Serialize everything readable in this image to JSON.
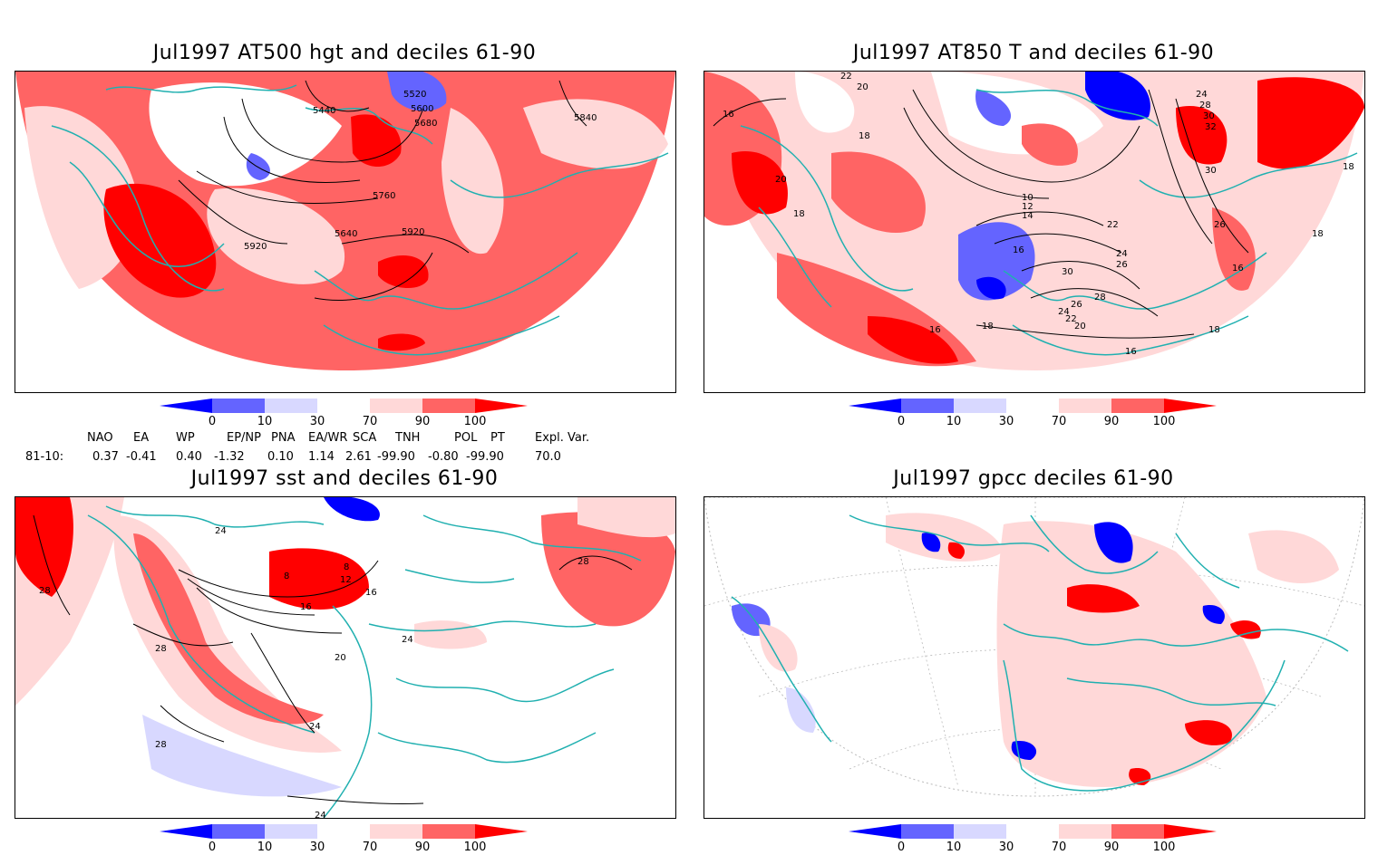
{
  "panels": [
    {
      "id": "p1",
      "title": "Jul1997 AT500 hgt and deciles 61-90",
      "contour_labels": [
        "5520",
        "5440",
        "5600",
        "5680",
        "5840",
        "5760",
        "5920",
        "5640",
        "5920"
      ]
    },
    {
      "id": "p2",
      "title": "Jul1997 AT850 T and deciles 61-90",
      "contour_labels": [
        "22",
        "20",
        "16",
        "18",
        "20",
        "18",
        "10",
        "12",
        "14",
        "16",
        "22",
        "24",
        "26",
        "30",
        "28",
        "26",
        "24",
        "22",
        "20",
        "16",
        "16",
        "18",
        "18",
        "24",
        "28",
        "30",
        "32",
        "30",
        "26",
        "18",
        "16",
        "18"
      ]
    },
    {
      "id": "p3",
      "title": "Jul1997 sst and deciles 61-90",
      "contour_labels": [
        "28",
        "24",
        "28",
        "24",
        "20",
        "16",
        "12",
        "8",
        "8",
        "16",
        "24",
        "28",
        "28",
        "24"
      ]
    },
    {
      "id": "p4",
      "title": "Jul1997 gpcc deciles 61-90",
      "contour_labels": []
    }
  ],
  "colorbar": {
    "colors": [
      "#0000ff",
      "#6464ff",
      "#d8d8ff",
      "#ffffff",
      "#ffd8d8",
      "#ff6464",
      "#ff0000"
    ],
    "labels": [
      "0",
      "10",
      "30",
      "70",
      "90",
      "100"
    ]
  },
  "indices": {
    "row_label": "81-10:",
    "names": [
      "NAO",
      "EA",
      "WP",
      "EP/NP",
      "PNA",
      "EA/WR",
      "SCA",
      "TNH",
      "POL",
      "PT",
      "Expl. Var."
    ],
    "values": [
      "0.37",
      "-0.41",
      "0.40",
      "-1.32",
      "0.10",
      "1.14",
      "2.61",
      "-99.90",
      "-0.80",
      "-99.90",
      "70.0"
    ]
  },
  "legend_colors": {
    "land": "#ffffff",
    "coast": "#20b0b0",
    "contour": "#000000"
  }
}
